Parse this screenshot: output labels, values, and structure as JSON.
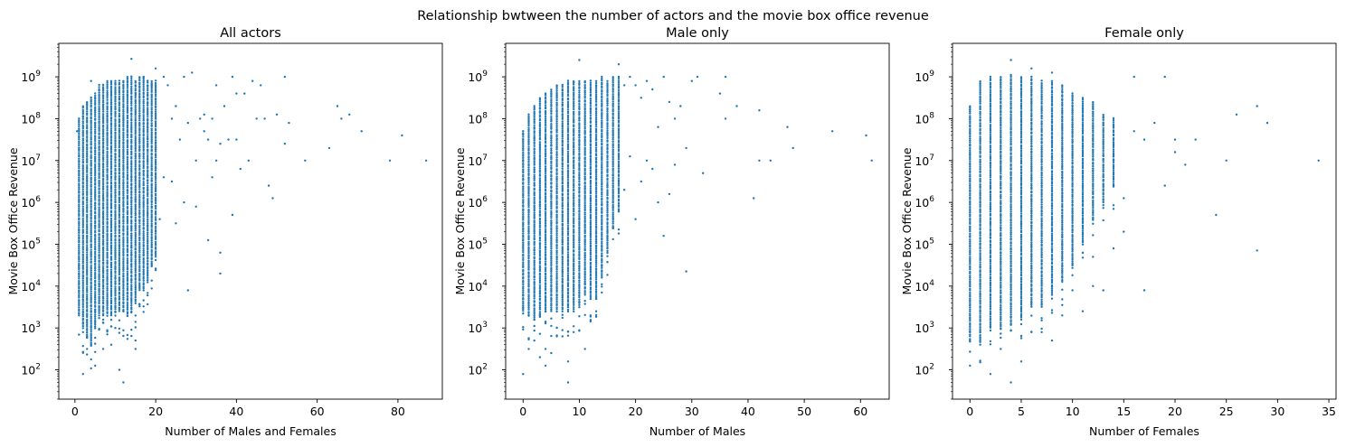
{
  "chart_data": {
    "type": "scatter",
    "suptitle": "Relationship bwtween the number of actors and the movie box office revenue",
    "yscale": "log",
    "color": "#1f77b4",
    "grid": false,
    "panels": [
      {
        "title": "All actors",
        "xlabel": "Number of Males and Females",
        "ylabel": "Movie Box Office Revenue",
        "xlim": [
          -4,
          91
        ],
        "xticks": [
          0,
          20,
          40,
          60,
          80
        ],
        "ylim_log10": [
          1.3,
          9.8
        ],
        "yticks_exp": [
          2,
          3,
          4,
          5,
          6,
          7,
          8,
          9
        ],
        "columns": [
          {
            "x": 1,
            "lo": 3.4,
            "hi": 8.0
          },
          {
            "x": 2,
            "lo": 3.0,
            "hi": 8.3
          },
          {
            "x": 3,
            "lo": 2.8,
            "hi": 8.4
          },
          {
            "x": 4,
            "lo": 2.6,
            "hi": 8.5
          },
          {
            "x": 5,
            "lo": 3.0,
            "hi": 8.6
          },
          {
            "x": 6,
            "lo": 3.3,
            "hi": 8.8
          },
          {
            "x": 7,
            "lo": 3.3,
            "hi": 8.8
          },
          {
            "x": 8,
            "lo": 3.3,
            "hi": 8.9
          },
          {
            "x": 9,
            "lo": 3.3,
            "hi": 8.9
          },
          {
            "x": 10,
            "lo": 3.4,
            "hi": 8.9
          },
          {
            "x": 11,
            "lo": 3.4,
            "hi": 8.9
          },
          {
            "x": 12,
            "lo": 3.4,
            "hi": 8.9
          },
          {
            "x": 13,
            "lo": 3.3,
            "hi": 9.0
          },
          {
            "x": 14,
            "lo": 3.4,
            "hi": 9.0
          },
          {
            "x": 15,
            "lo": 3.6,
            "hi": 8.9
          },
          {
            "x": 16,
            "lo": 3.9,
            "hi": 9.0
          },
          {
            "x": 17,
            "lo": 3.9,
            "hi": 9.0
          },
          {
            "x": 18,
            "lo": 4.1,
            "hi": 8.9
          },
          {
            "x": 19,
            "lo": 4.5,
            "hi": 8.9
          },
          {
            "x": 20,
            "lo": 4.7,
            "hi": 8.9
          }
        ],
        "points": [
          [
            0.5,
            7.7
          ],
          [
            1,
            4.5
          ],
          [
            1,
            3.3
          ],
          [
            2,
            2.9
          ],
          [
            2,
            1.9
          ],
          [
            3,
            2.5
          ],
          [
            4,
            8.9
          ],
          [
            5,
            2.1
          ],
          [
            7,
            2.5
          ],
          [
            9,
            2.6
          ],
          [
            10,
            3.0
          ],
          [
            11,
            2.0
          ],
          [
            12,
            1.7
          ],
          [
            14,
            9.43
          ],
          [
            15,
            2.5
          ],
          [
            15,
            2.7
          ],
          [
            17,
            9.0
          ],
          [
            19,
            8.8
          ],
          [
            20,
            9.2
          ],
          [
            21,
            5.6
          ],
          [
            22,
            9.0
          ],
          [
            22,
            6.6
          ],
          [
            23,
            8.8
          ],
          [
            24,
            8.0
          ],
          [
            24,
            6.5
          ],
          [
            25,
            8.3
          ],
          [
            25,
            5.5
          ],
          [
            26,
            7.5
          ],
          [
            27,
            9.0
          ],
          [
            27,
            6.0
          ],
          [
            28,
            7.9
          ],
          [
            28,
            3.9
          ],
          [
            29,
            9.1
          ],
          [
            30,
            7.0
          ],
          [
            30,
            5.9
          ],
          [
            31,
            8.0
          ],
          [
            32,
            8.1
          ],
          [
            32,
            7.7
          ],
          [
            33,
            7.5
          ],
          [
            33,
            5.1
          ],
          [
            34,
            8.0
          ],
          [
            34,
            6.6
          ],
          [
            35,
            8.8
          ],
          [
            35,
            7.0
          ],
          [
            36,
            7.4
          ],
          [
            36,
            4.8
          ],
          [
            36,
            4.3
          ],
          [
            37,
            8.3
          ],
          [
            38,
            7.5
          ],
          [
            39,
            9.0
          ],
          [
            39,
            5.7
          ],
          [
            40,
            8.6
          ],
          [
            40,
            7.5
          ],
          [
            41,
            6.8
          ],
          [
            42,
            8.6
          ],
          [
            43,
            7.0
          ],
          [
            44,
            8.9
          ],
          [
            45,
            8.0
          ],
          [
            46,
            8.8
          ],
          [
            47,
            8.0
          ],
          [
            48,
            6.4
          ],
          [
            49,
            6.1
          ],
          [
            50,
            8.1
          ],
          [
            52,
            7.4
          ],
          [
            52,
            9.0
          ],
          [
            53,
            7.9
          ],
          [
            57,
            7.0
          ],
          [
            63,
            7.3
          ],
          [
            65,
            8.3
          ],
          [
            66,
            8.0
          ],
          [
            68,
            8.1
          ],
          [
            71,
            7.7
          ],
          [
            78,
            7.0
          ],
          [
            81,
            7.6
          ],
          [
            87,
            7.0
          ]
        ]
      },
      {
        "title": "Male only",
        "xlabel": "Number of Males",
        "ylabel": "Movie Box Office Revenue",
        "xlim": [
          -3.1,
          65.1
        ],
        "xticks": [
          0,
          10,
          20,
          30,
          40,
          50,
          60
        ],
        "ylim_log10": [
          1.3,
          9.8
        ],
        "yticks_exp": [
          2,
          3,
          4,
          5,
          6,
          7,
          8,
          9
        ],
        "columns": [
          {
            "x": 0,
            "lo": 3.4,
            "hi": 7.7
          },
          {
            "x": 1,
            "lo": 3.3,
            "hi": 8.1
          },
          {
            "x": 2,
            "lo": 3.2,
            "hi": 8.3
          },
          {
            "x": 3,
            "lo": 3.3,
            "hi": 8.5
          },
          {
            "x": 4,
            "lo": 3.4,
            "hi": 8.6
          },
          {
            "x": 5,
            "lo": 3.4,
            "hi": 8.7
          },
          {
            "x": 6,
            "lo": 3.4,
            "hi": 8.8
          },
          {
            "x": 7,
            "lo": 3.4,
            "hi": 8.8
          },
          {
            "x": 8,
            "lo": 3.4,
            "hi": 8.9
          },
          {
            "x": 9,
            "lo": 3.5,
            "hi": 8.9
          },
          {
            "x": 10,
            "lo": 3.5,
            "hi": 8.9
          },
          {
            "x": 11,
            "lo": 3.8,
            "hi": 8.9
          },
          {
            "x": 12,
            "lo": 3.7,
            "hi": 8.9
          },
          {
            "x": 13,
            "lo": 3.7,
            "hi": 8.9
          },
          {
            "x": 14,
            "lo": 4.2,
            "hi": 9.0
          },
          {
            "x": 15,
            "lo": 4.8,
            "hi": 8.9
          },
          {
            "x": 16,
            "lo": 5.4,
            "hi": 9.0
          },
          {
            "x": 17,
            "lo": 5.8,
            "hi": 9.0
          }
        ],
        "points": [
          [
            0,
            1.9
          ],
          [
            1,
            2.5
          ],
          [
            2,
            2.7
          ],
          [
            3,
            2.3
          ],
          [
            4,
            2.5
          ],
          [
            4,
            2.1
          ],
          [
            5,
            2.4
          ],
          [
            6,
            2.8
          ],
          [
            7,
            2.8
          ],
          [
            8,
            1.7
          ],
          [
            8,
            2.2
          ],
          [
            9,
            2.9
          ],
          [
            10,
            9.4
          ],
          [
            11,
            2.5
          ],
          [
            12,
            3.3
          ],
          [
            13,
            3.4
          ],
          [
            17,
            9.3
          ],
          [
            18,
            8.8
          ],
          [
            18,
            6.3
          ],
          [
            19,
            9.0
          ],
          [
            19,
            7.1
          ],
          [
            20,
            8.8
          ],
          [
            20,
            5.6
          ],
          [
            21,
            8.5
          ],
          [
            21,
            6.5
          ],
          [
            22,
            8.9
          ],
          [
            22,
            7.0
          ],
          [
            23,
            8.7
          ],
          [
            23,
            6.8
          ],
          [
            24,
            7.8
          ],
          [
            24,
            6.0
          ],
          [
            25,
            9.0
          ],
          [
            25,
            5.2
          ],
          [
            26,
            8.4
          ],
          [
            26,
            6.2
          ],
          [
            27,
            8.0
          ],
          [
            27,
            6.9
          ],
          [
            28,
            8.3
          ],
          [
            29,
            7.3
          ],
          [
            29,
            4.35
          ],
          [
            30,
            8.9
          ],
          [
            31,
            9.0
          ],
          [
            32,
            6.7
          ],
          [
            35,
            8.6
          ],
          [
            36,
            9.0
          ],
          [
            36,
            8.0
          ],
          [
            38,
            8.3
          ],
          [
            41,
            6.1
          ],
          [
            42,
            8.2
          ],
          [
            42,
            7.0
          ],
          [
            44,
            7.0
          ],
          [
            47,
            7.8
          ],
          [
            48,
            7.3
          ],
          [
            55,
            7.7
          ],
          [
            61,
            7.6
          ],
          [
            62,
            7.0
          ]
        ]
      },
      {
        "title": "Female only",
        "xlabel": "Number of Females",
        "ylabel": "Movie Box Office Revenue",
        "xlim": [
          -1.7,
          35.7
        ],
        "xticks": [
          0,
          5,
          10,
          15,
          20,
          25,
          30,
          35
        ],
        "ylim_log10": [
          1.3,
          9.8
        ],
        "yticks_exp": [
          2,
          3,
          4,
          5,
          6,
          7,
          8,
          9
        ],
        "columns": [
          {
            "x": 0,
            "lo": 2.8,
            "hi": 8.3
          },
          {
            "x": 1,
            "lo": 2.7,
            "hi": 8.9
          },
          {
            "x": 2,
            "lo": 3.0,
            "hi": 9.0
          },
          {
            "x": 3,
            "lo": 3.0,
            "hi": 9.0
          },
          {
            "x": 4,
            "lo": 3.1,
            "hi": 9.05
          },
          {
            "x": 5,
            "lo": 3.2,
            "hi": 9.0
          },
          {
            "x": 6,
            "lo": 3.5,
            "hi": 9.0
          },
          {
            "x": 7,
            "lo": 3.5,
            "hi": 8.9
          },
          {
            "x": 8,
            "lo": 3.8,
            "hi": 8.9
          },
          {
            "x": 9,
            "lo": 4.1,
            "hi": 8.8
          },
          {
            "x": 10,
            "lo": 4.5,
            "hi": 8.6
          },
          {
            "x": 11,
            "lo": 5.0,
            "hi": 8.5
          },
          {
            "x": 12,
            "lo": 5.6,
            "hi": 8.4
          },
          {
            "x": 13,
            "lo": 6.0,
            "hi": 8.1
          },
          {
            "x": 14,
            "lo": 6.4,
            "hi": 8.0
          }
        ],
        "points": [
          [
            0,
            2.1
          ],
          [
            0,
            2.7
          ],
          [
            1,
            2.6
          ],
          [
            2,
            1.9
          ],
          [
            3,
            2.5
          ],
          [
            4,
            1.7
          ],
          [
            4,
            9.4
          ],
          [
            5,
            2.2
          ],
          [
            6,
            9.2
          ],
          [
            7,
            2.9
          ],
          [
            8,
            9.1
          ],
          [
            8,
            2.7
          ],
          [
            9,
            3.3
          ],
          [
            10,
            3.9
          ],
          [
            11,
            3.4
          ],
          [
            12,
            4.0
          ],
          [
            12,
            4.7
          ],
          [
            13,
            3.9
          ],
          [
            14,
            4.9
          ],
          [
            14,
            7.0
          ],
          [
            15,
            5.3
          ],
          [
            15,
            6.1
          ],
          [
            16,
            9.0
          ],
          [
            16,
            7.7
          ],
          [
            17,
            3.9
          ],
          [
            17,
            7.5
          ],
          [
            18,
            7.9
          ],
          [
            19,
            9.0
          ],
          [
            19,
            6.4
          ],
          [
            20,
            7.5
          ],
          [
            20,
            7.2
          ],
          [
            21,
            6.9
          ],
          [
            22,
            7.5
          ],
          [
            24,
            5.7
          ],
          [
            25,
            7.0
          ],
          [
            26,
            8.1
          ],
          [
            28,
            8.3
          ],
          [
            28,
            4.85
          ],
          [
            29,
            7.9
          ],
          [
            34,
            7.0
          ]
        ]
      }
    ]
  }
}
